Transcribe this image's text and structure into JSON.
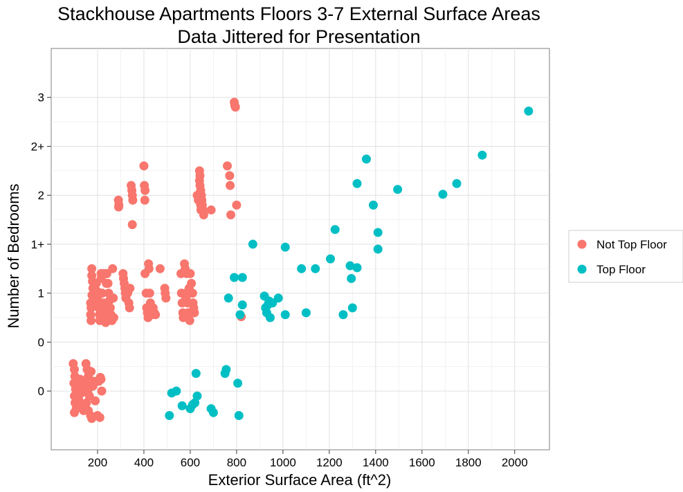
{
  "chart_data": {
    "type": "scatter",
    "title": [
      "Stackhouse Apartments Floors 3-7 External Surface Areas",
      "Data Jittered for Presentation"
    ],
    "xlabel": "Exterior Surface Area (ft^2)",
    "ylabel": "Number of Bedrooms",
    "xlim": [
      0,
      2150
    ],
    "ylim": [
      -0.6,
      3.5
    ],
    "x_ticks": [
      200,
      400,
      600,
      800,
      1000,
      1200,
      1400,
      1600,
      1800,
      2000
    ],
    "y_ticks": [
      {
        "value": 0,
        "label": "0"
      },
      {
        "value": 0.5,
        "label": "0"
      },
      {
        "value": 1,
        "label": "1"
      },
      {
        "value": 1.5,
        "label": "1+"
      },
      {
        "value": 2,
        "label": "2"
      },
      {
        "value": 2.5,
        "label": "2+"
      },
      {
        "value": 3,
        "label": "3"
      }
    ],
    "grid": true,
    "legend_position": "right",
    "series": [
      {
        "name": "Not Top Floor",
        "color": "#F8766D",
        "points": [
          [
            95,
            0.28
          ],
          [
            100,
            0.22
          ],
          [
            102,
            0.15
          ],
          [
            98,
            0.08
          ],
          [
            105,
            0.02
          ],
          [
            100,
            -0.05
          ],
          [
            103,
            -0.12
          ],
          [
            108,
            -0.18
          ],
          [
            100,
            -0.22
          ],
          [
            112,
            0.1
          ],
          [
            118,
            -0.08
          ],
          [
            125,
            0.12
          ],
          [
            130,
            -0.02
          ],
          [
            135,
            -0.15
          ],
          [
            140,
            -0.2
          ],
          [
            128,
            0.05
          ],
          [
            150,
            0.28
          ],
          [
            155,
            0.22
          ],
          [
            160,
            0.15
          ],
          [
            148,
            0.08
          ],
          [
            158,
            0.0
          ],
          [
            165,
            -0.05
          ],
          [
            152,
            -0.12
          ],
          [
            160,
            -0.2
          ],
          [
            170,
            -0.25
          ],
          [
            175,
            -0.28
          ],
          [
            185,
            0.1
          ],
          [
            190,
            -0.1
          ],
          [
            172,
            0.2
          ],
          [
            180,
            0.05
          ],
          [
            200,
            -0.25
          ],
          [
            205,
            0.1
          ],
          [
            210,
            -0.27
          ],
          [
            212,
            0.14
          ],
          [
            215,
            0.12
          ],
          [
            218,
            0.0
          ],
          [
            170,
            0.9
          ],
          [
            172,
            0.85
          ],
          [
            170,
            0.78
          ],
          [
            172,
            0.72
          ],
          [
            175,
            1.25
          ],
          [
            175,
            1.18
          ],
          [
            178,
            1.12
          ],
          [
            180,
            1.05
          ],
          [
            176,
            0.98
          ],
          [
            182,
            0.92
          ],
          [
            195,
            1.1
          ],
          [
            198,
            1.02
          ],
          [
            200,
            0.96
          ],
          [
            202,
            0.9
          ],
          [
            205,
            0.85
          ],
          [
            208,
            0.78
          ],
          [
            210,
            0.72
          ],
          [
            215,
            1.15
          ],
          [
            220,
            1.0
          ],
          [
            225,
            0.9
          ],
          [
            228,
            0.82
          ],
          [
            230,
            0.75
          ],
          [
            235,
            0.7
          ],
          [
            240,
            1.2
          ],
          [
            245,
            1.1
          ],
          [
            248,
            1.0
          ],
          [
            250,
            0.92
          ],
          [
            255,
            0.85
          ],
          [
            258,
            0.78
          ],
          [
            262,
            0.72
          ],
          [
            265,
            1.25
          ],
          [
            268,
            0.95
          ],
          [
            270,
            0.75
          ],
          [
            215,
            1.2
          ],
          [
            222,
            1.2
          ],
          [
            235,
            1.2
          ],
          [
            238,
            1.1
          ],
          [
            240,
            0.9
          ],
          [
            240,
            0.75
          ],
          [
            290,
            1.95
          ],
          [
            292,
            1.9
          ],
          [
            291,
            1.88
          ],
          [
            310,
            1.2
          ],
          [
            312,
            1.15
          ],
          [
            315,
            1.1
          ],
          [
            318,
            1.05
          ],
          [
            320,
            1.0
          ],
          [
            322,
            0.95
          ],
          [
            330,
            1.0
          ],
          [
            335,
            0.9
          ],
          [
            338,
            0.85
          ],
          [
            340,
            1.05
          ],
          [
            345,
            2.1
          ],
          [
            348,
            2.05
          ],
          [
            350,
            2.0
          ],
          [
            352,
            1.95
          ],
          [
            350,
            1.7
          ],
          [
            400,
            2.3
          ],
          [
            402,
            2.1
          ],
          [
            405,
            2.05
          ],
          [
            404,
            1.95
          ],
          [
            405,
            1.2
          ],
          [
            410,
            1.0
          ],
          [
            412,
            0.85
          ],
          [
            415,
            0.8
          ],
          [
            418,
            0.75
          ],
          [
            420,
            1.3
          ],
          [
            422,
            1.25
          ],
          [
            425,
            1.0
          ],
          [
            428,
            0.9
          ],
          [
            430,
            0.82
          ],
          [
            435,
            0.78
          ],
          [
            440,
            0.85
          ],
          [
            445,
            0.8
          ],
          [
            450,
            0.78
          ],
          [
            470,
            1.25
          ],
          [
            490,
            1.05
          ],
          [
            492,
            1.0
          ],
          [
            495,
            0.95
          ],
          [
            560,
            1.2
          ],
          [
            562,
            1.0
          ],
          [
            565,
            0.9
          ],
          [
            568,
            0.8
          ],
          [
            570,
            0.75
          ],
          [
            575,
            1.3
          ],
          [
            578,
            1.25
          ],
          [
            580,
            1.0
          ],
          [
            582,
            0.95
          ],
          [
            585,
            1.2
          ],
          [
            588,
            0.9
          ],
          [
            590,
            0.8
          ],
          [
            592,
            0.75
          ],
          [
            595,
            1.05
          ],
          [
            598,
            0.72
          ],
          [
            600,
            1.2
          ],
          [
            605,
            1.1
          ],
          [
            610,
            1.0
          ],
          [
            612,
            0.9
          ],
          [
            615,
            0.85
          ],
          [
            618,
            0.8
          ],
          [
            640,
            2.25
          ],
          [
            642,
            2.2
          ],
          [
            645,
            1.9
          ],
          [
            646,
            1.85
          ],
          [
            640,
            2.15
          ],
          [
            642,
            2.1
          ],
          [
            645,
            2.05
          ],
          [
            648,
            2.0
          ],
          [
            650,
            1.95
          ],
          [
            652,
            1.9
          ],
          [
            655,
            1.85
          ],
          [
            658,
            1.8
          ],
          [
            630,
            2.0
          ],
          [
            635,
            1.95
          ],
          [
            690,
            1.85
          ],
          [
            760,
            2.3
          ],
          [
            770,
            2.2
          ],
          [
            772,
            2.1
          ],
          [
            775,
            1.8
          ],
          [
            800,
            1.9
          ],
          [
            790,
            2.95
          ],
          [
            792,
            2.92
          ],
          [
            795,
            2.9
          ],
          [
            820,
            0.76
          ]
        ]
      },
      {
        "name": "Top Floor",
        "color": "#00BFC4",
        "points": [
          [
            510,
            -0.25
          ],
          [
            520,
            -0.02
          ],
          [
            540,
            0.0
          ],
          [
            565,
            -0.15
          ],
          [
            600,
            -0.18
          ],
          [
            610,
            -0.14
          ],
          [
            620,
            -0.12
          ],
          [
            625,
            0.18
          ],
          [
            630,
            -0.05
          ],
          [
            690,
            -0.18
          ],
          [
            700,
            -0.22
          ],
          [
            750,
            0.18
          ],
          [
            755,
            0.22
          ],
          [
            805,
            0.08
          ],
          [
            810,
            -0.25
          ],
          [
            765,
            0.95
          ],
          [
            790,
            1.16
          ],
          [
            815,
            0.78
          ],
          [
            825,
            1.16
          ],
          [
            825,
            0.88
          ],
          [
            870,
            1.5
          ],
          [
            920,
            0.97
          ],
          [
            925,
            0.85
          ],
          [
            930,
            0.8
          ],
          [
            935,
            0.88
          ],
          [
            940,
            0.92
          ],
          [
            945,
            0.75
          ],
          [
            955,
            0.9
          ],
          [
            980,
            0.95
          ],
          [
            1010,
            0.78
          ],
          [
            1010,
            1.47
          ],
          [
            1080,
            1.25
          ],
          [
            1100,
            0.8
          ],
          [
            1140,
            1.25
          ],
          [
            1205,
            1.35
          ],
          [
            1225,
            1.65
          ],
          [
            1260,
            0.78
          ],
          [
            1290,
            1.28
          ],
          [
            1295,
            1.15
          ],
          [
            1300,
            0.85
          ],
          [
            1320,
            1.26
          ],
          [
            1320,
            2.12
          ],
          [
            1360,
            2.37
          ],
          [
            1390,
            1.9
          ],
          [
            1410,
            1.62
          ],
          [
            1410,
            1.45
          ],
          [
            1495,
            2.06
          ],
          [
            1690,
            2.01
          ],
          [
            1750,
            2.12
          ],
          [
            1860,
            2.41
          ],
          [
            2060,
            2.86
          ]
        ]
      }
    ]
  }
}
